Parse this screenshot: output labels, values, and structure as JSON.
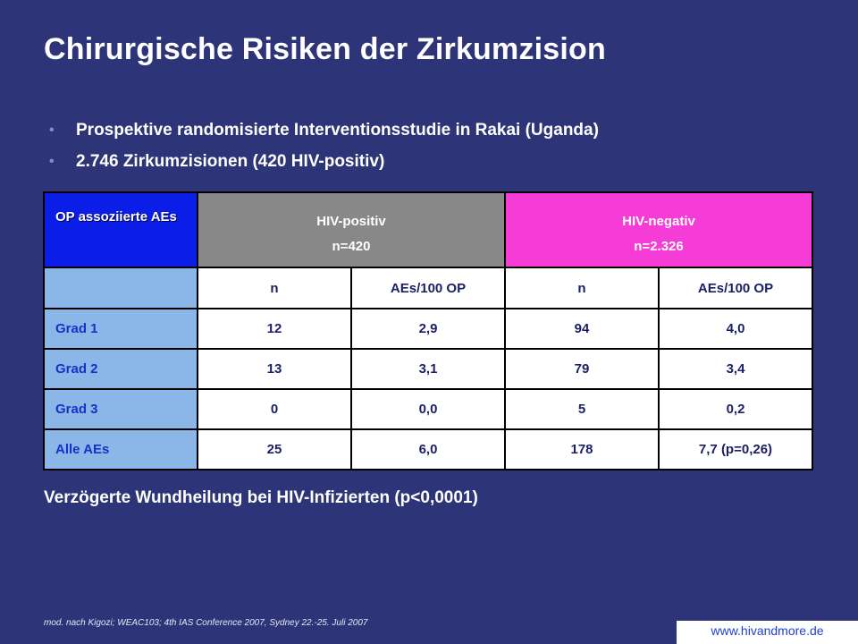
{
  "slide": {
    "title": "Chirurgische Risiken der Zirkumzision",
    "bullets": [
      "Prospektive randomisierte Interventionsstudie in Rakai (Uganda)",
      "2.746 Zirkumzisionen (420 HIV-positiv)"
    ],
    "conclusion": "Verzögerte Wundheilung bei HIV-Infizierten (p<0,0001)",
    "footnote": "mod. nach Kigozi; WEAC103; 4th IAS Conference 2007, Sydney 22.-25. Juli 2007",
    "website": "www.hivandmore.de"
  },
  "table": {
    "header": {
      "op_label": "OP assoziierte AEs",
      "pos_group": "HIV-positiv",
      "pos_n": "n=420",
      "neg_group": "HIV-negativ",
      "neg_n": "n=2.326"
    },
    "subheader": [
      "n",
      "AEs/100 OP",
      "n",
      "AEs/100 OP"
    ],
    "rows": [
      {
        "label": "Grad 1",
        "cells": [
          "12",
          "2,9",
          "94",
          "4,0"
        ]
      },
      {
        "label": "Grad 2",
        "cells": [
          "13",
          "3,1",
          "79",
          "3,4"
        ]
      },
      {
        "label": "Grad 3",
        "cells": [
          "0",
          "0,0",
          "5",
          "0,2"
        ]
      },
      {
        "label": "Alle AEs",
        "cells": [
          "25",
          "6,0",
          "178",
          "7,7 (p=0,26)"
        ]
      }
    ]
  },
  "colors": {
    "background": "#2e3478",
    "op_header": "#0b1ee8",
    "hiv_positive_header": "#888888",
    "hiv_negative_header": "#f53cd6",
    "label_column": "#8ab6e8"
  }
}
